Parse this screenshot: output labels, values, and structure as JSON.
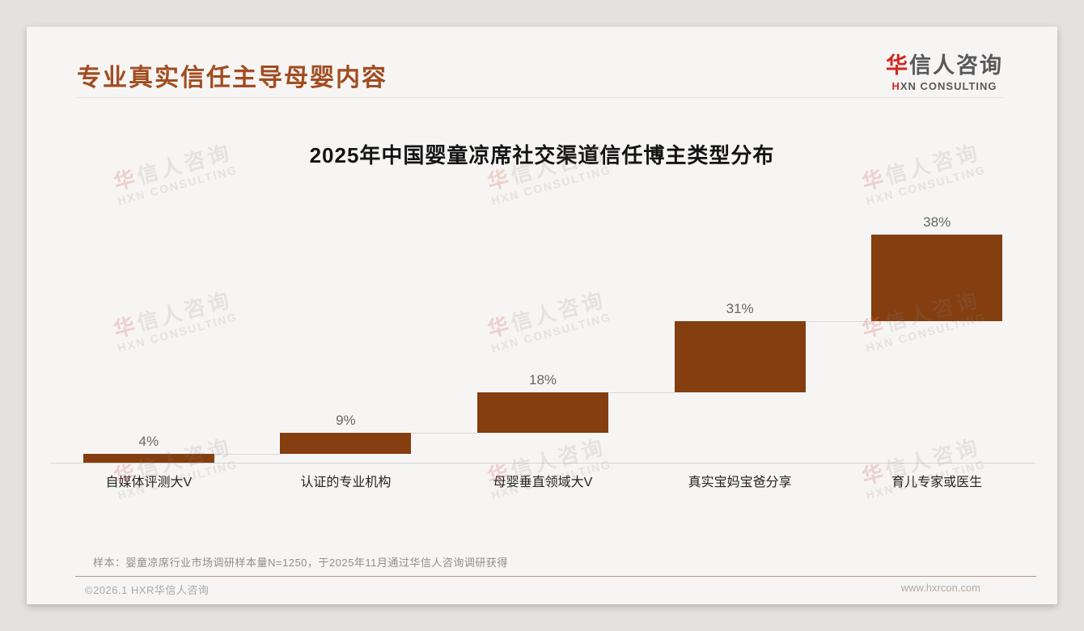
{
  "page": {
    "title": "专业真实信任主导母婴内容",
    "note": "样本：婴童凉席行业市场调研样本量N=1250，于2025年11月通过华信人咨询调研获得",
    "copyright": "©2026.1 HXR华信人咨询",
    "website": "www.hxrcon.com"
  },
  "branding": {
    "logo_cn_first": "华",
    "logo_cn_rest": "信人咨询",
    "logo_en_first": "H",
    "logo_en_rest": "XN CONSULTING",
    "watermark_cn_first": "华",
    "watermark_cn_rest": "信人咨询",
    "watermark_en": "HXN CONSULTING"
  },
  "colors": {
    "bar": "#843E10",
    "accent_red": "#D2281E",
    "title_brown": "#A14D21"
  },
  "chart_data": {
    "type": "bar",
    "subtype": "cumulative-waterfall",
    "title": "2025年中国婴童凉席社交渠道信任博主类型分布",
    "categories": [
      "自媒体评测大V",
      "认证的专业机构",
      "母婴垂直领域大V",
      "真实宝妈宝爸分享",
      "育儿专家或医生"
    ],
    "values": [
      4,
      9,
      18,
      31,
      38
    ],
    "labels": [
      "4%",
      "9%",
      "18%",
      "31%",
      "38%"
    ],
    "unit": "%",
    "ylim": [
      0,
      100
    ],
    "grid": false,
    "legend": false,
    "bar_color": "#843E10",
    "note": "each bar starts at the cumulative total of the previous bars; cumulative end = 100%"
  }
}
